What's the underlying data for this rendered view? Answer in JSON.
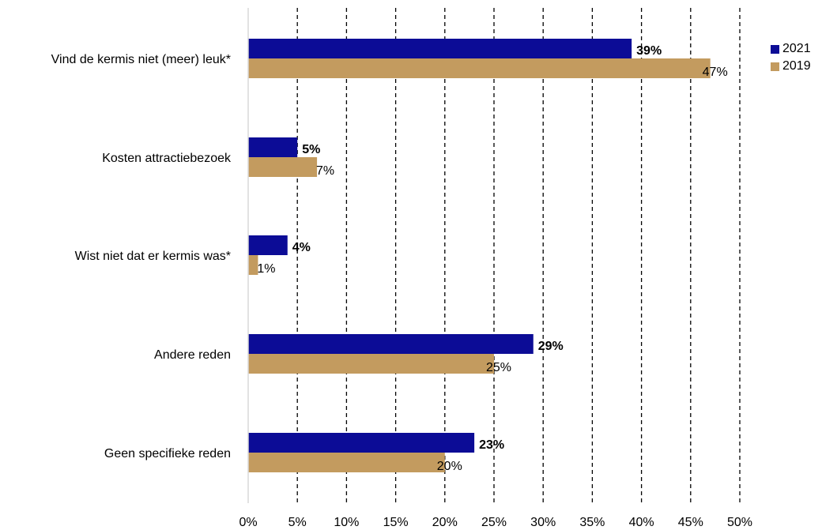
{
  "chart_data": {
    "type": "bar",
    "orientation": "horizontal",
    "categories": [
      "Vind de kermis niet (meer) leuk*",
      "Kosten attractiebezoek",
      "Wist niet dat er kermis was*",
      "Andere reden",
      "Geen specifieke reden"
    ],
    "series": [
      {
        "name": "2021",
        "color": "#0C0C96",
        "values": [
          39,
          5,
          4,
          29,
          23
        ],
        "labels": [
          "39%",
          "5%",
          "4%",
          "29%",
          "23%"
        ],
        "label_bold": true
      },
      {
        "name": "2019",
        "color": "#C39B5F",
        "values": [
          47,
          7,
          1,
          25,
          20
        ],
        "labels": [
          "47%",
          "7%",
          "1%",
          "25%",
          "20%"
        ],
        "label_bold": false
      }
    ],
    "xlim": [
      0,
      50
    ],
    "xticks": [
      "0%",
      "5%",
      "10%",
      "15%",
      "20%",
      "25%",
      "30%",
      "35%",
      "40%",
      "45%",
      "50%"
    ],
    "gridlines": "dashed vertical",
    "legend_position": "top-right"
  }
}
